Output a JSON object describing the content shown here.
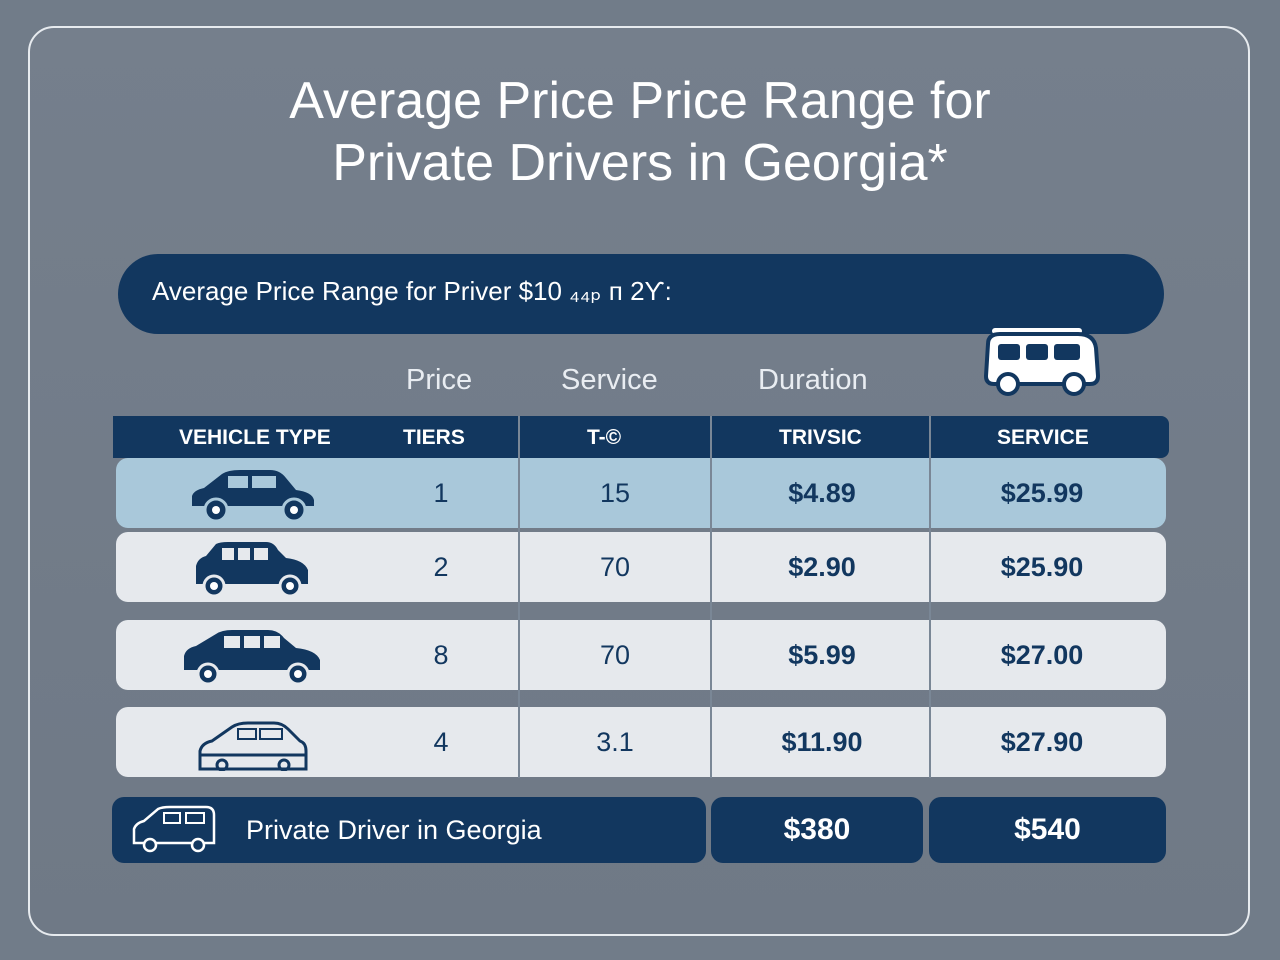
{
  "title": {
    "line1": "Average Price Price Range for",
    "line2": "Private Drivers in Georgia*"
  },
  "banner": {
    "text": "Average Price Range for Priver $10 ₄₄ₚ ᴨ 2Ƴ:"
  },
  "column_headings": {
    "price": "Price",
    "service": "Service",
    "duration": "Duration"
  },
  "table": {
    "headers": [
      "VEHICLE TYPE",
      "TIERS",
      "T-©",
      "TRIVSIC",
      "SERVICE"
    ],
    "rows": [
      {
        "vehicle_icon": "hatchback-car-icon",
        "tier": "1",
        "t": "15",
        "trivsic": "$4.89",
        "service": "$25.99"
      },
      {
        "vehicle_icon": "suv-car-icon",
        "tier": "2",
        "t": "70",
        "trivsic": "$2.90",
        "service": "$25.90"
      },
      {
        "vehicle_icon": "crossover-car-icon",
        "tier": "8",
        "t": "70",
        "trivsic": "$5.99",
        "service": "$27.00"
      },
      {
        "vehicle_icon": "sedan-car-outline-icon",
        "tier": "4",
        "t": "3.1",
        "trivsic": "$11.90",
        "service": "$27.90"
      }
    ]
  },
  "footer": {
    "label": "Private Driver in Georgia",
    "value1": "$380",
    "value2": "$540",
    "icon": "van-outline-icon"
  },
  "colors": {
    "navy": "#12375f",
    "background": "#717c89",
    "row_highlight": "#a9c8da",
    "row": "#e6e9ed"
  }
}
